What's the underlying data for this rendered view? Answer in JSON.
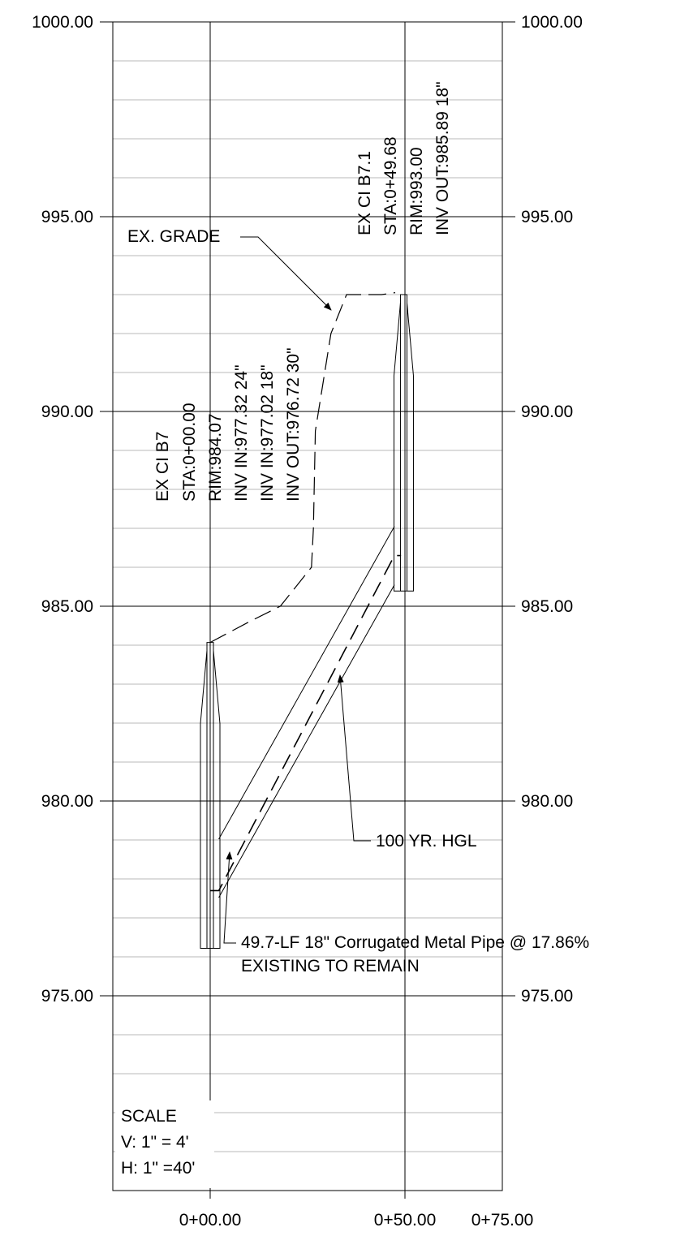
{
  "elevation_axis": {
    "left_labels": [
      "1000.00",
      "995.00",
      "990.00",
      "985.00",
      "980.00",
      "975.00"
    ],
    "right_labels": [
      "1000.00",
      "995.00",
      "990.00",
      "985.00",
      "980.00",
      "975.00"
    ],
    "values": [
      1000,
      995,
      990,
      985,
      980,
      975
    ],
    "range": [
      970,
      1000
    ],
    "minor_interval": 1
  },
  "station_axis": {
    "labels": [
      "0+00.00",
      "0+50.00",
      "0+75.00"
    ],
    "values": [
      0,
      50,
      75
    ],
    "range": [
      -25,
      75
    ]
  },
  "structures": [
    {
      "lines": [
        "EX CI B7",
        "STA:0+00.00",
        "RIM:984.07",
        "INV IN:977.32 24\"",
        "INV IN:977.02 18\"",
        "INV OUT:976.72 30\""
      ],
      "station": 0.0,
      "rim": 984.07,
      "invert": 976.22
    },
    {
      "lines": [
        "EX CI B7.1",
        "STA:0+49.68",
        "RIM:993.00",
        "INV OUT:985.89 18\""
      ],
      "station": 49.68,
      "rim": 993.0,
      "invert": 985.39
    }
  ],
  "pipe": {
    "from_station": 2.2,
    "to_station": 47.3,
    "from_invert": 977.52,
    "to_invert": 985.55,
    "diameter": 1.5
  },
  "hgl": {
    "points": [
      [
        0,
        977.7
      ],
      [
        2.2,
        977.7
      ],
      [
        47.3,
        986.3
      ],
      [
        49.0,
        986.3
      ]
    ]
  },
  "existing_grade": {
    "points": [
      [
        0,
        984.07
      ],
      [
        10,
        984.6
      ],
      [
        18,
        985.0
      ],
      [
        26,
        986.0
      ],
      [
        26.5,
        987.0
      ],
      [
        27,
        989.5
      ],
      [
        31,
        992.0
      ],
      [
        35,
        993.0
      ],
      [
        44,
        993.0
      ],
      [
        47.5,
        993.05
      ]
    ]
  },
  "annotations": {
    "ex_grade": "EX. GRADE",
    "hgl": "100 YR. HGL",
    "pipe_line1": "49.7-LF 18\" Corrugated Metal Pipe @ 17.86%",
    "pipe_line2": "EXISTING TO REMAIN"
  },
  "scale_note": {
    "title": "SCALE",
    "vertical": "V: 1\" = 4'",
    "horizontal": "H: 1\" =40'"
  }
}
